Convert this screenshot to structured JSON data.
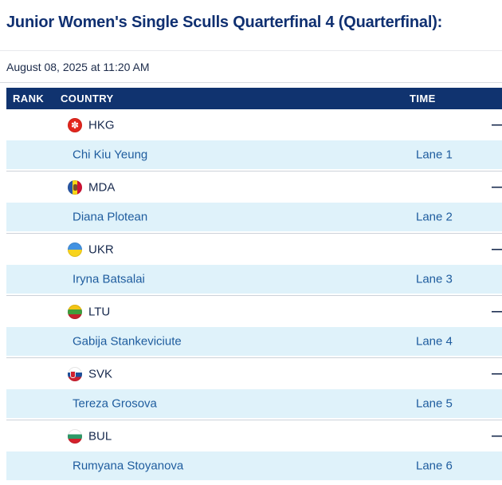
{
  "page": {
    "title": "Junior Women's Single Sculls Quarterfinal 4 (Quarterfinal):",
    "date": "August 08, 2025 at 11:20 AM"
  },
  "table": {
    "columns": [
      "RANK",
      "COUNTRY",
      "TIME"
    ],
    "entries": [
      {
        "flag": "hkg",
        "code": "HKG",
        "name": "Chi Kiu Yeung",
        "lane": "Lane 1",
        "time": "—"
      },
      {
        "flag": "mda",
        "code": "MDA",
        "name": "Diana Plotean",
        "lane": "Lane 2",
        "time": "—"
      },
      {
        "flag": "ukr",
        "code": "UKR",
        "name": "Iryna Batsalai",
        "lane": "Lane 3",
        "time": "—"
      },
      {
        "flag": "ltu",
        "code": "LTU",
        "name": "Gabija Stankeviciute",
        "lane": "Lane 4",
        "time": "—"
      },
      {
        "flag": "svk",
        "code": "SVK",
        "name": "Tereza Grosova",
        "lane": "Lane 5",
        "time": "—"
      },
      {
        "flag": "bul",
        "code": "BUL",
        "name": "Rumyana Stoyanova",
        "lane": "Lane 6",
        "time": "—"
      }
    ]
  },
  "colors": {
    "header_bg": "#10336f",
    "row_alt_bg": "#dff2fa",
    "title_navy": "#103071",
    "text_navy": "#17294d",
    "text_blue": "#1e5c9e"
  }
}
